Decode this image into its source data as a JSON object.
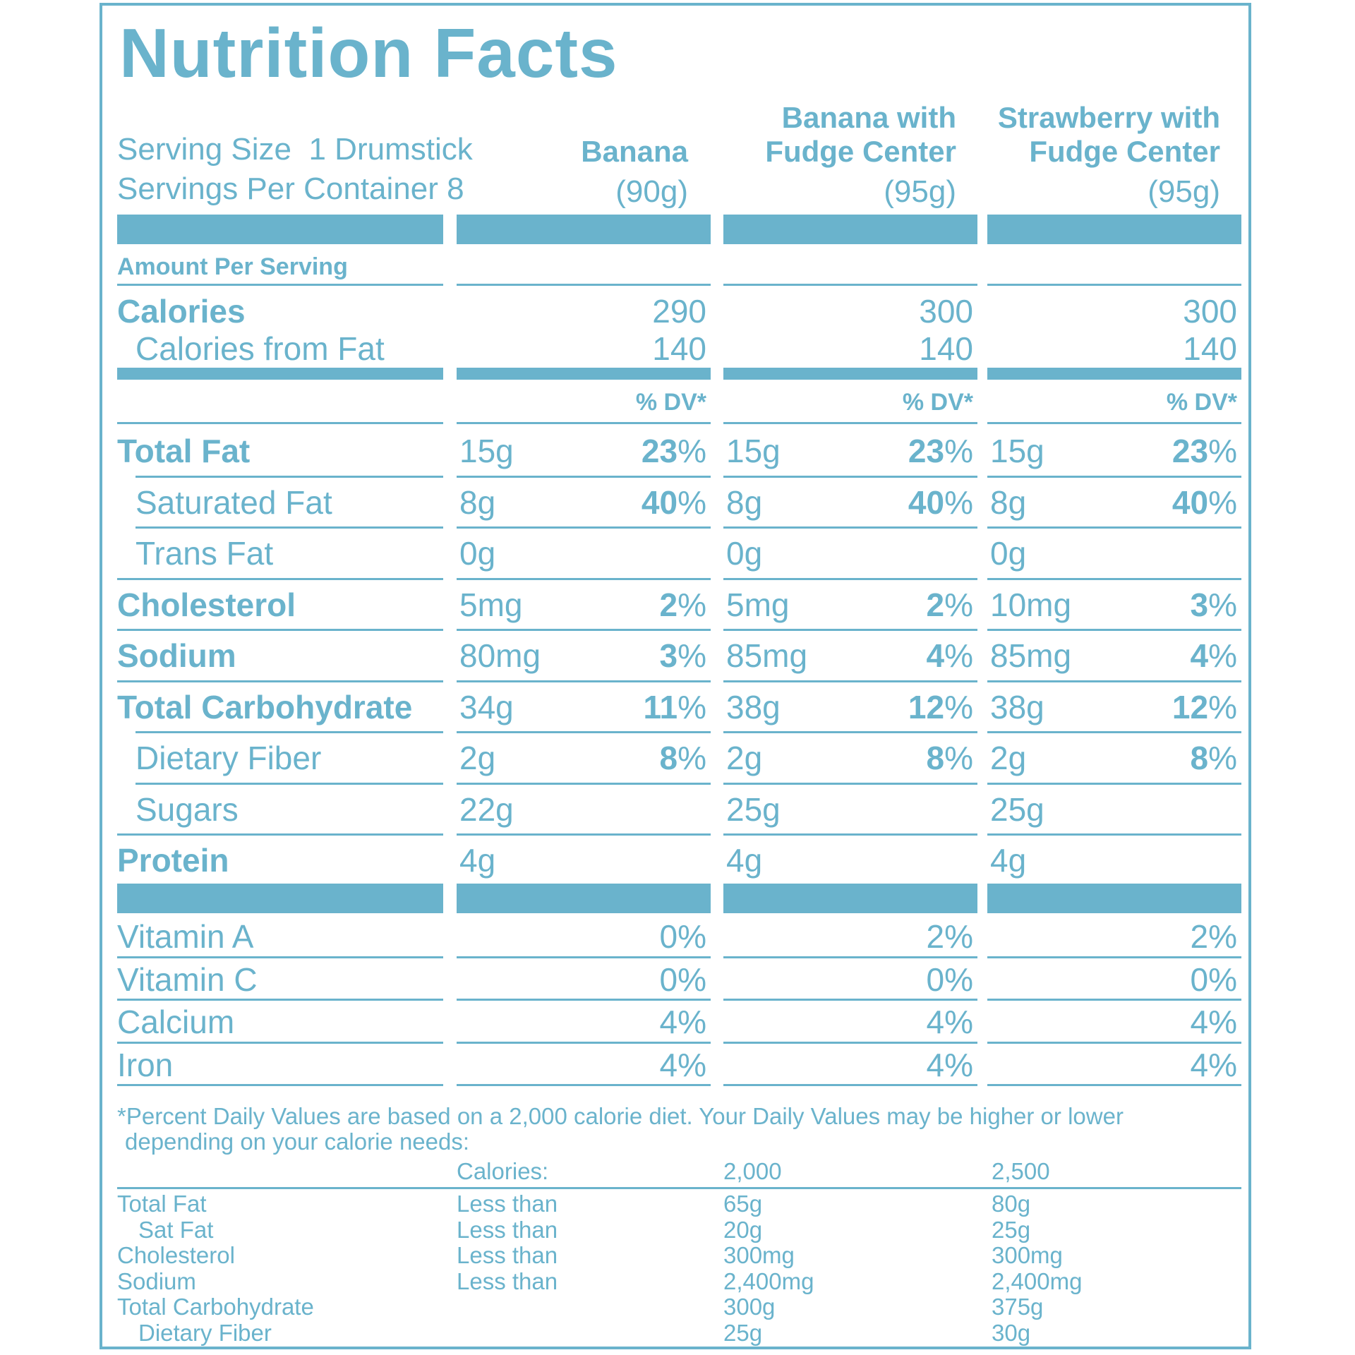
{
  "title": "Nutrition Facts",
  "serving": {
    "size_label": "Serving Size",
    "size_value": "1 Drumstick",
    "per_container": "Servings Per Container 8"
  },
  "products": [
    {
      "name_line1": "",
      "name_line2": "Banana",
      "weight": "(90g)"
    },
    {
      "name_line1": "Banana with",
      "name_line2": "Fudge Center",
      "weight": "(95g)"
    },
    {
      "name_line1": "Strawberry with",
      "name_line2": "Fudge Center",
      "weight": "(95g)"
    }
  ],
  "amount_per_serving": "Amount Per Serving",
  "calories": {
    "label": "Calories",
    "values": [
      "290",
      "300",
      "300"
    ]
  },
  "calories_from_fat": {
    "label": "Calories from Fat",
    "values": [
      "140",
      "140",
      "140"
    ]
  },
  "dv_header": "% DV*",
  "nutrients": [
    {
      "label": "Total Fat",
      "bold": true,
      "indent": false,
      "cells": [
        {
          "amt": "15g",
          "pct": "23"
        },
        {
          "amt": "15g",
          "pct": "23"
        },
        {
          "amt": "15g",
          "pct": "23"
        }
      ]
    },
    {
      "label": "Saturated Fat",
      "bold": false,
      "indent": true,
      "cells": [
        {
          "amt": "8g",
          "pct": "40"
        },
        {
          "amt": "8g",
          "pct": "40"
        },
        {
          "amt": "8g",
          "pct": "40"
        }
      ]
    },
    {
      "label": "Trans Fat",
      "bold": false,
      "indent": true,
      "cells": [
        {
          "amt": "0g",
          "pct": ""
        },
        {
          "amt": "0g",
          "pct": ""
        },
        {
          "amt": "0g",
          "pct": ""
        }
      ]
    },
    {
      "label": "Cholesterol",
      "bold": true,
      "indent": false,
      "cells": [
        {
          "amt": "5mg",
          "pct": "2"
        },
        {
          "amt": "5mg",
          "pct": "2"
        },
        {
          "amt": "10mg",
          "pct": "3"
        }
      ]
    },
    {
      "label": "Sodium",
      "bold": true,
      "indent": false,
      "cells": [
        {
          "amt": "80mg",
          "pct": "3"
        },
        {
          "amt": "85mg",
          "pct": "4"
        },
        {
          "amt": "85mg",
          "pct": "4"
        }
      ]
    },
    {
      "label": "Total Carbohydrate",
      "bold": true,
      "indent": false,
      "cells": [
        {
          "amt": "34g",
          "pct": "11"
        },
        {
          "amt": "38g",
          "pct": "12"
        },
        {
          "amt": "38g",
          "pct": "12"
        }
      ]
    },
    {
      "label": "Dietary Fiber",
      "bold": false,
      "indent": true,
      "cells": [
        {
          "amt": "2g",
          "pct": "8"
        },
        {
          "amt": "2g",
          "pct": "8"
        },
        {
          "amt": "2g",
          "pct": "8"
        }
      ]
    },
    {
      "label": "Sugars",
      "bold": false,
      "indent": true,
      "cells": [
        {
          "amt": "22g",
          "pct": ""
        },
        {
          "amt": "25g",
          "pct": ""
        },
        {
          "amt": "25g",
          "pct": ""
        }
      ]
    },
    {
      "label": "Protein",
      "bold": true,
      "indent": false,
      "cells": [
        {
          "amt": "4g",
          "pct": ""
        },
        {
          "amt": "4g",
          "pct": ""
        },
        {
          "amt": "4g",
          "pct": ""
        }
      ]
    }
  ],
  "vitamins": [
    {
      "label": "Vitamin A",
      "values": [
        "0%",
        "2%",
        "2%"
      ]
    },
    {
      "label": "Vitamin C",
      "values": [
        "0%",
        "0%",
        "0%"
      ]
    },
    {
      "label": "Calcium",
      "values": [
        "4%",
        "4%",
        "4%"
      ]
    },
    {
      "label": "Iron",
      "values": [
        "4%",
        "4%",
        "4%"
      ]
    }
  ],
  "footnote_line1": "*Percent Daily Values are based on a 2,000 calorie diet. Your Daily Values may be higher or lower",
  "footnote_line2": "depending on your calorie needs:",
  "dv_table": {
    "header": [
      "",
      "Calories:",
      "2,000",
      "2,500"
    ],
    "rows": [
      {
        "label": "Total Fat",
        "indent": false,
        "qual": "Less than",
        "v1": "65g",
        "v2": "80g"
      },
      {
        "label": "Sat Fat",
        "indent": true,
        "qual": "Less than",
        "v1": "20g",
        "v2": "25g"
      },
      {
        "label": "Cholesterol",
        "indent": false,
        "qual": "Less than",
        "v1": "300mg",
        "v2": "300mg"
      },
      {
        "label": "Sodium",
        "indent": false,
        "qual": "Less than",
        "v1": "2,400mg",
        "v2": "2,400mg"
      },
      {
        "label": "Total Carbohydrate",
        "indent": false,
        "qual": "",
        "v1": "300g",
        "v2": "375g"
      },
      {
        "label": "Dietary Fiber",
        "indent": true,
        "qual": "",
        "v1": "25g",
        "v2": "30g"
      }
    ]
  },
  "colors": {
    "accent": "#6ab3cc",
    "background": "#ffffff"
  }
}
